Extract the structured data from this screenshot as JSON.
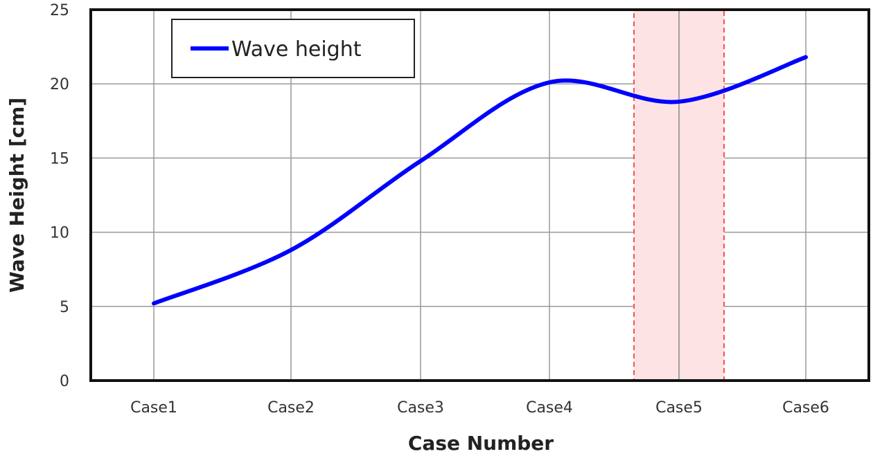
{
  "chart_data": {
    "type": "line",
    "title": "",
    "xlabel": "Case Number",
    "ylabel": "Wave Height [cm]",
    "categories": [
      "Case1",
      "Case2",
      "Case3",
      "Case4",
      "Case5",
      "Case6"
    ],
    "series": [
      {
        "name": "Wave height",
        "values": [
          5.2,
          8.8,
          14.8,
          20.1,
          18.8,
          21.8
        ],
        "color": "#0000ff",
        "smooth": true
      }
    ],
    "ylim": [
      0,
      25
    ],
    "yticks": [
      0,
      5,
      10,
      15,
      20,
      25
    ],
    "grid": true,
    "legend": "top-left",
    "highlight": {
      "category": "Case5",
      "fill": "#fde3e3",
      "stroke": "#ff4d4d",
      "style": "dashed"
    }
  }
}
